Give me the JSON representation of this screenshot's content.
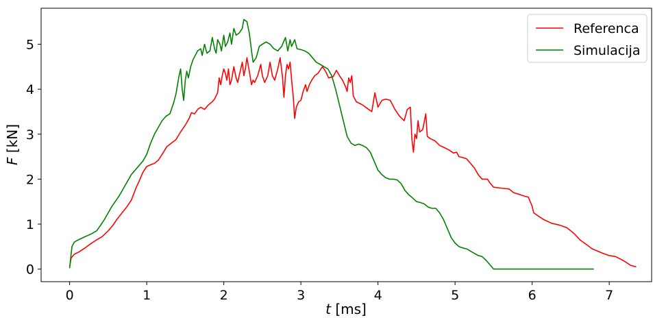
{
  "chart_data": {
    "type": "line",
    "title": "",
    "xlabel": {
      "var": "t",
      "unit": " [ms]"
    },
    "ylabel": {
      "var": "F",
      "unit": " [kN]"
    },
    "xlim": [
      -0.37,
      7.55
    ],
    "ylim": [
      -0.28,
      5.8
    ],
    "xticks": [
      0,
      1,
      2,
      3,
      4,
      5,
      6,
      7
    ],
    "yticks": [
      0,
      1,
      2,
      3,
      4,
      5
    ],
    "grid": false,
    "legend": "top-right",
    "series": [
      {
        "name": "Referenca",
        "color": "#ff0000",
        "points": [
          [
            0.0,
            0.05
          ],
          [
            0.02,
            0.25
          ],
          [
            0.06,
            0.33
          ],
          [
            0.12,
            0.38
          ],
          [
            0.2,
            0.47
          ],
          [
            0.28,
            0.57
          ],
          [
            0.35,
            0.65
          ],
          [
            0.42,
            0.72
          ],
          [
            0.5,
            0.85
          ],
          [
            0.56,
            0.97
          ],
          [
            0.62,
            1.12
          ],
          [
            0.68,
            1.25
          ],
          [
            0.74,
            1.38
          ],
          [
            0.8,
            1.53
          ],
          [
            0.86,
            1.8
          ],
          [
            0.9,
            1.95
          ],
          [
            0.95,
            2.15
          ],
          [
            1.0,
            2.28
          ],
          [
            1.05,
            2.32
          ],
          [
            1.1,
            2.35
          ],
          [
            1.15,
            2.42
          ],
          [
            1.2,
            2.55
          ],
          [
            1.26,
            2.72
          ],
          [
            1.32,
            2.8
          ],
          [
            1.38,
            2.88
          ],
          [
            1.44,
            3.05
          ],
          [
            1.5,
            3.2
          ],
          [
            1.55,
            3.35
          ],
          [
            1.58,
            3.48
          ],
          [
            1.62,
            3.45
          ],
          [
            1.66,
            3.55
          ],
          [
            1.7,
            3.6
          ],
          [
            1.75,
            3.55
          ],
          [
            1.8,
            3.65
          ],
          [
            1.85,
            3.72
          ],
          [
            1.88,
            3.78
          ],
          [
            1.92,
            3.92
          ],
          [
            1.94,
            4.25
          ],
          [
            1.96,
            4.1
          ],
          [
            1.98,
            4.3
          ],
          [
            2.0,
            4.45
          ],
          [
            2.02,
            4.35
          ],
          [
            2.04,
            4.2
          ],
          [
            2.06,
            4.45
          ],
          [
            2.08,
            4.1
          ],
          [
            2.1,
            4.2
          ],
          [
            2.13,
            4.5
          ],
          [
            2.16,
            4.25
          ],
          [
            2.18,
            4.15
          ],
          [
            2.2,
            4.3
          ],
          [
            2.24,
            4.6
          ],
          [
            2.26,
            4.3
          ],
          [
            2.28,
            4.45
          ],
          [
            2.3,
            4.7
          ],
          [
            2.33,
            4.4
          ],
          [
            2.36,
            4.1
          ],
          [
            2.38,
            4.2
          ],
          [
            2.4,
            4.15
          ],
          [
            2.44,
            4.3
          ],
          [
            2.48,
            4.55
          ],
          [
            2.5,
            4.3
          ],
          [
            2.53,
            4.15
          ],
          [
            2.57,
            4.3
          ],
          [
            2.6,
            4.6
          ],
          [
            2.63,
            4.3
          ],
          [
            2.66,
            4.2
          ],
          [
            2.7,
            4.45
          ],
          [
            2.73,
            4.7
          ],
          [
            2.76,
            4.3
          ],
          [
            2.78,
            3.82
          ],
          [
            2.8,
            4.3
          ],
          [
            2.82,
            4.55
          ],
          [
            2.84,
            4.45
          ],
          [
            2.86,
            4.6
          ],
          [
            2.88,
            4.2
          ],
          [
            2.9,
            3.85
          ],
          [
            2.92,
            3.35
          ],
          [
            2.94,
            3.6
          ],
          [
            2.97,
            3.72
          ],
          [
            3.0,
            3.75
          ],
          [
            3.03,
            3.95
          ],
          [
            3.06,
            4.1
          ],
          [
            3.08,
            3.95
          ],
          [
            3.11,
            4.1
          ],
          [
            3.14,
            4.2
          ],
          [
            3.18,
            4.3
          ],
          [
            3.22,
            4.35
          ],
          [
            3.28,
            4.5
          ],
          [
            3.32,
            4.4
          ],
          [
            3.36,
            4.25
          ],
          [
            3.42,
            4.28
          ],
          [
            3.46,
            4.42
          ],
          [
            3.5,
            4.3
          ],
          [
            3.54,
            4.2
          ],
          [
            3.58,
            4.05
          ],
          [
            3.6,
            3.95
          ],
          [
            3.62,
            4.25
          ],
          [
            3.64,
            4.15
          ],
          [
            3.66,
            4.3
          ],
          [
            3.68,
            3.85
          ],
          [
            3.72,
            3.72
          ],
          [
            3.8,
            3.65
          ],
          [
            3.88,
            3.55
          ],
          [
            3.92,
            3.5
          ],
          [
            3.96,
            3.92
          ],
          [
            4.0,
            3.6
          ],
          [
            4.05,
            3.75
          ],
          [
            4.1,
            3.78
          ],
          [
            4.16,
            3.75
          ],
          [
            4.22,
            3.55
          ],
          [
            4.28,
            3.4
          ],
          [
            4.34,
            3.3
          ],
          [
            4.38,
            3.55
          ],
          [
            4.42,
            3.6
          ],
          [
            4.44,
            2.9
          ],
          [
            4.46,
            2.6
          ],
          [
            4.48,
            3.0
          ],
          [
            4.5,
            2.9
          ],
          [
            4.52,
            3.3
          ],
          [
            4.54,
            3.05
          ],
          [
            4.58,
            3.1
          ],
          [
            4.62,
            3.45
          ],
          [
            4.64,
            2.95
          ],
          [
            4.68,
            2.9
          ],
          [
            4.74,
            2.85
          ],
          [
            4.8,
            2.75
          ],
          [
            4.86,
            2.7
          ],
          [
            4.92,
            2.65
          ],
          [
            4.98,
            2.58
          ],
          [
            5.02,
            2.6
          ],
          [
            5.05,
            2.5
          ],
          [
            5.1,
            2.48
          ],
          [
            5.15,
            2.45
          ],
          [
            5.2,
            2.35
          ],
          [
            5.25,
            2.25
          ],
          [
            5.3,
            2.1
          ],
          [
            5.35,
            2.0
          ],
          [
            5.42,
            2.0
          ],
          [
            5.45,
            1.92
          ],
          [
            5.5,
            1.82
          ],
          [
            5.6,
            1.8
          ],
          [
            5.7,
            1.78
          ],
          [
            5.76,
            1.7
          ],
          [
            5.85,
            1.65
          ],
          [
            5.9,
            1.62
          ],
          [
            5.95,
            1.6
          ],
          [
            6.0,
            1.4
          ],
          [
            6.02,
            1.25
          ],
          [
            6.08,
            1.18
          ],
          [
            6.15,
            1.1
          ],
          [
            6.25,
            1.02
          ],
          [
            6.35,
            0.98
          ],
          [
            6.45,
            0.92
          ],
          [
            6.5,
            0.85
          ],
          [
            6.55,
            0.78
          ],
          [
            6.62,
            0.65
          ],
          [
            6.7,
            0.55
          ],
          [
            6.78,
            0.45
          ],
          [
            6.85,
            0.4
          ],
          [
            6.92,
            0.35
          ],
          [
            7.0,
            0.3
          ],
          [
            7.08,
            0.28
          ],
          [
            7.15,
            0.22
          ],
          [
            7.22,
            0.15
          ],
          [
            7.28,
            0.08
          ],
          [
            7.35,
            0.05
          ]
        ]
      },
      {
        "name": "Simulacija",
        "color": "#008000",
        "points": [
          [
            0.0,
            0.02
          ],
          [
            0.03,
            0.5
          ],
          [
            0.06,
            0.6
          ],
          [
            0.1,
            0.64
          ],
          [
            0.15,
            0.68
          ],
          [
            0.2,
            0.72
          ],
          [
            0.28,
            0.78
          ],
          [
            0.35,
            0.85
          ],
          [
            0.4,
            0.97
          ],
          [
            0.45,
            1.1
          ],
          [
            0.5,
            1.25
          ],
          [
            0.55,
            1.4
          ],
          [
            0.6,
            1.52
          ],
          [
            0.65,
            1.65
          ],
          [
            0.7,
            1.8
          ],
          [
            0.75,
            1.95
          ],
          [
            0.8,
            2.1
          ],
          [
            0.85,
            2.2
          ],
          [
            0.9,
            2.3
          ],
          [
            0.95,
            2.4
          ],
          [
            1.0,
            2.55
          ],
          [
            1.05,
            2.8
          ],
          [
            1.1,
            3.0
          ],
          [
            1.15,
            3.15
          ],
          [
            1.2,
            3.3
          ],
          [
            1.25,
            3.4
          ],
          [
            1.3,
            3.45
          ],
          [
            1.35,
            3.7
          ],
          [
            1.38,
            3.9
          ],
          [
            1.4,
            4.1
          ],
          [
            1.42,
            4.3
          ],
          [
            1.44,
            4.45
          ],
          [
            1.46,
            4.0
          ],
          [
            1.48,
            3.75
          ],
          [
            1.5,
            4.2
          ],
          [
            1.52,
            4.4
          ],
          [
            1.54,
            4.25
          ],
          [
            1.57,
            4.5
          ],
          [
            1.6,
            4.65
          ],
          [
            1.63,
            4.75
          ],
          [
            1.66,
            4.85
          ],
          [
            1.7,
            4.9
          ],
          [
            1.72,
            4.75
          ],
          [
            1.75,
            5.0
          ],
          [
            1.78,
            4.8
          ],
          [
            1.82,
            4.85
          ],
          [
            1.85,
            5.15
          ],
          [
            1.88,
            4.9
          ],
          [
            1.9,
            4.8
          ],
          [
            1.92,
            5.1
          ],
          [
            1.95,
            5.0
          ],
          [
            1.97,
            4.85
          ],
          [
            2.0,
            5.2
          ],
          [
            2.02,
            4.95
          ],
          [
            2.05,
            5.05
          ],
          [
            2.08,
            5.25
          ],
          [
            2.1,
            5.0
          ],
          [
            2.13,
            5.35
          ],
          [
            2.16,
            5.2
          ],
          [
            2.2,
            5.25
          ],
          [
            2.24,
            5.35
          ],
          [
            2.26,
            5.55
          ],
          [
            2.3,
            5.5
          ],
          [
            2.33,
            5.25
          ],
          [
            2.36,
            4.85
          ],
          [
            2.38,
            4.6
          ],
          [
            2.42,
            4.7
          ],
          [
            2.46,
            4.95
          ],
          [
            2.5,
            5.0
          ],
          [
            2.55,
            5.05
          ],
          [
            2.6,
            5.0
          ],
          [
            2.65,
            4.9
          ],
          [
            2.7,
            4.85
          ],
          [
            2.75,
            4.95
          ],
          [
            2.8,
            5.15
          ],
          [
            2.83,
            4.85
          ],
          [
            2.86,
            5.1
          ],
          [
            2.88,
            4.95
          ],
          [
            2.92,
            5.1
          ],
          [
            2.95,
            4.9
          ],
          [
            3.0,
            4.88
          ],
          [
            3.05,
            4.85
          ],
          [
            3.1,
            4.8
          ],
          [
            3.15,
            4.7
          ],
          [
            3.2,
            4.6
          ],
          [
            3.25,
            4.55
          ],
          [
            3.3,
            4.5
          ],
          [
            3.35,
            4.45
          ],
          [
            3.4,
            4.3
          ],
          [
            3.45,
            4.0
          ],
          [
            3.5,
            3.65
          ],
          [
            3.55,
            3.3
          ],
          [
            3.6,
            2.95
          ],
          [
            3.65,
            2.8
          ],
          [
            3.7,
            2.75
          ],
          [
            3.75,
            2.78
          ],
          [
            3.8,
            2.75
          ],
          [
            3.85,
            2.7
          ],
          [
            3.9,
            2.6
          ],
          [
            3.95,
            2.4
          ],
          [
            4.0,
            2.2
          ],
          [
            4.05,
            2.1
          ],
          [
            4.1,
            2.03
          ],
          [
            4.15,
            2.0
          ],
          [
            4.2,
            2.0
          ],
          [
            4.25,
            1.98
          ],
          [
            4.3,
            1.9
          ],
          [
            4.35,
            1.75
          ],
          [
            4.4,
            1.65
          ],
          [
            4.45,
            1.58
          ],
          [
            4.5,
            1.5
          ],
          [
            4.55,
            1.48
          ],
          [
            4.6,
            1.45
          ],
          [
            4.65,
            1.38
          ],
          [
            4.7,
            1.35
          ],
          [
            4.75,
            1.35
          ],
          [
            4.8,
            1.25
          ],
          [
            4.85,
            1.1
          ],
          [
            4.9,
            0.9
          ],
          [
            4.95,
            0.7
          ],
          [
            5.0,
            0.58
          ],
          [
            5.05,
            0.5
          ],
          [
            5.1,
            0.47
          ],
          [
            5.15,
            0.45
          ],
          [
            5.2,
            0.4
          ],
          [
            5.25,
            0.35
          ],
          [
            5.3,
            0.3
          ],
          [
            5.35,
            0.28
          ],
          [
            5.4,
            0.2
          ],
          [
            5.45,
            0.1
          ],
          [
            5.5,
            0.0
          ],
          [
            6.8,
            0.0
          ]
        ]
      }
    ]
  }
}
